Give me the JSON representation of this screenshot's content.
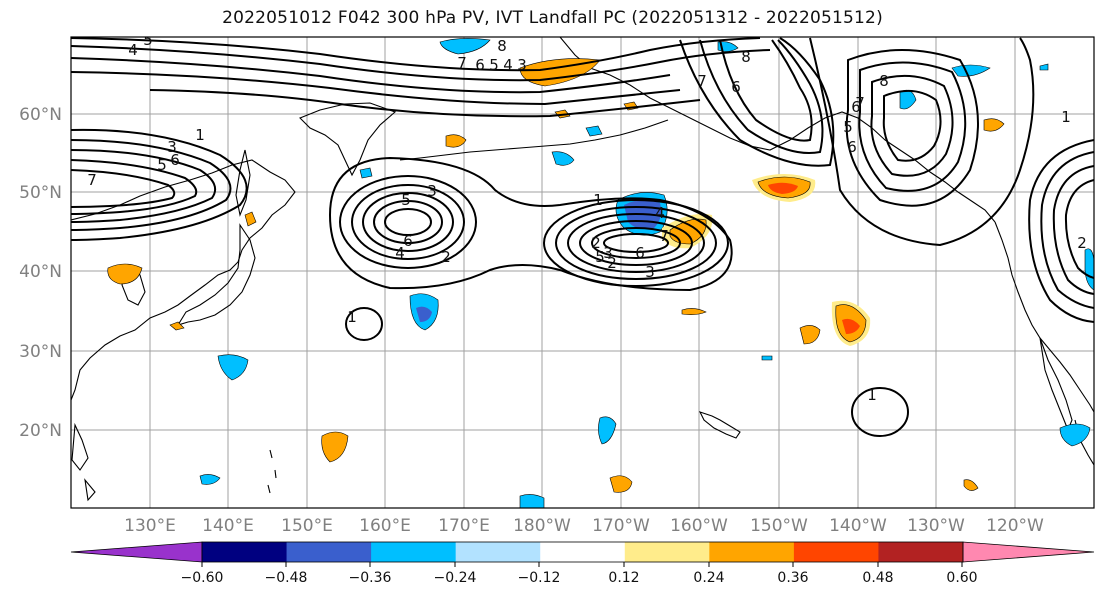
{
  "title": "2022051012 F042 300 hPa PV, IVT Landfall PC (2022051312 - 2022051512)",
  "lat_labels": [
    "20°N",
    "30°N",
    "40°N",
    "50°N",
    "60°N"
  ],
  "lon_labels": [
    "130°E",
    "140°E",
    "150°E",
    "160°E",
    "170°E",
    "180°W",
    "170°W",
    "160°W",
    "150°W",
    "140°W",
    "130°W",
    "120°W"
  ],
  "colorbar": {
    "ticks": [
      "−0.60",
      "−0.48",
      "−0.36",
      "−0.24",
      "−0.12",
      "0.12",
      "0.24",
      "0.36",
      "0.48",
      "0.60"
    ],
    "colors": [
      "#9932cc",
      "#000080",
      "#3a5fcd",
      "#00bfff",
      "#b2e2ff",
      "#ffffff",
      "#ffec8b",
      "#ffa500",
      "#ff4500",
      "#b22222",
      "#ff88b0"
    ]
  },
  "contour_labels": [
    "4",
    "5",
    "8",
    "7",
    "6",
    "5",
    "4",
    "3",
    "1",
    "3",
    "5",
    "6",
    "7",
    "5",
    "3",
    "6",
    "4",
    "2",
    "1",
    "2",
    "3",
    "4",
    "7",
    "5",
    "6",
    "3",
    "1",
    "8",
    "7",
    "6",
    "1",
    "2",
    "7",
    "6",
    "8",
    "6",
    "1",
    "5",
    "2"
  ]
}
